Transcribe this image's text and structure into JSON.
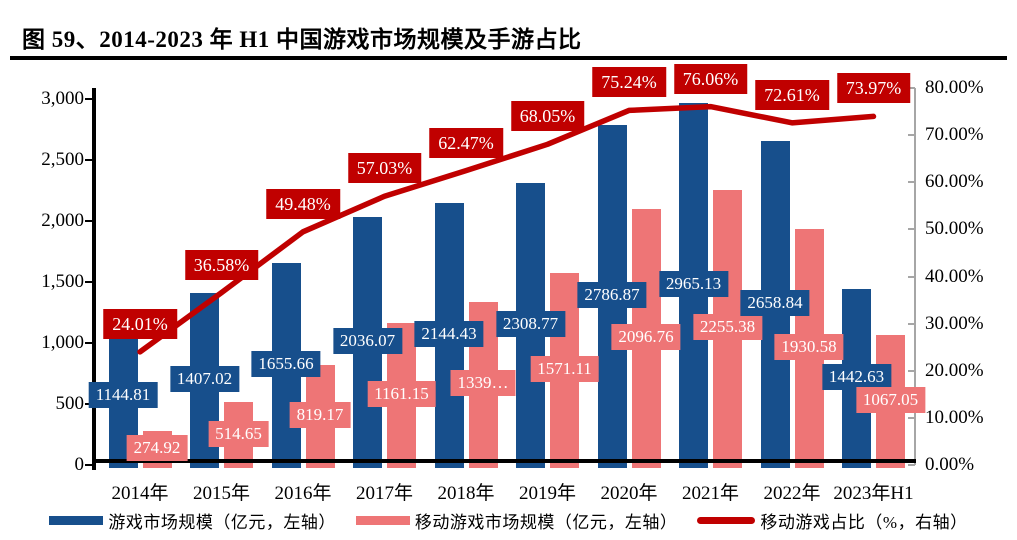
{
  "figure": {
    "title": "图 59、2014-2023 年 H1 中国游戏市场规模及手游占比"
  },
  "colors": {
    "bar_blue": "#174F8C",
    "bar_pink": "#EE7576",
    "line_red": "#C00000",
    "axis_black": "#000000",
    "axis_gray": "#A6A6A6",
    "label_text": "#FFFFFF"
  },
  "chart_data": {
    "type": "bar+line combo",
    "categories": [
      "2014年",
      "2015年",
      "2016年",
      "2017年",
      "2018年",
      "2019年",
      "2020年",
      "2021年",
      "2022年",
      "2023年H1"
    ],
    "series": [
      {
        "name": "游戏市场规模（亿元，左轴）",
        "type": "bar",
        "axis": "left",
        "color": "#174F8C",
        "values": [
          1144.81,
          1407.02,
          1655.66,
          2036.07,
          2144.43,
          2308.77,
          2786.87,
          2965.13,
          2658.84,
          1442.63
        ],
        "labels": [
          "1144.81",
          "1407.02",
          "1655.66",
          "2036.07",
          "2144.43",
          "2308.77",
          "2786.87",
          "2965.13",
          "2658.84",
          "1442.63"
        ]
      },
      {
        "name": "移动游戏市场规模（亿元，左轴）",
        "type": "bar",
        "axis": "left",
        "color": "#EE7576",
        "values": [
          274.92,
          514.65,
          819.17,
          1161.15,
          1339.6,
          1571.11,
          2096.76,
          2255.38,
          1930.58,
          1067.05
        ],
        "labels": [
          "274.92",
          "514.65",
          "819.17",
          "1161.15",
          "1339…",
          "1571.11",
          "2096.76",
          "2255.38",
          "1930.58",
          "1067.05"
        ]
      },
      {
        "name": "移动游戏占比（%，右轴）",
        "type": "line",
        "axis": "right",
        "color": "#C00000",
        "values": [
          24.01,
          36.58,
          49.48,
          57.03,
          62.47,
          68.05,
          75.24,
          76.06,
          72.61,
          73.97
        ],
        "labels": [
          "24.01%",
          "36.58%",
          "49.48%",
          "57.03%",
          "62.47%",
          "68.05%",
          "75.24%",
          "76.06%",
          "72.61%",
          "73.97%"
        ]
      }
    ],
    "left_axis": {
      "min": 0,
      "max": 3000,
      "tick_step": 500,
      "tick_labels": [
        "0",
        "500",
        "1,000",
        "1,500",
        "2,000",
        "2,500",
        "3,000"
      ]
    },
    "right_axis": {
      "min": 0,
      "max": 80,
      "tick_step": 10,
      "tick_labels": [
        "0.00%",
        "10.00%",
        "20.00%",
        "30.00%",
        "40.00%",
        "50.00%",
        "60.00%",
        "70.00%",
        "80.00%"
      ]
    },
    "grid": false,
    "legend_position": "bottom"
  }
}
